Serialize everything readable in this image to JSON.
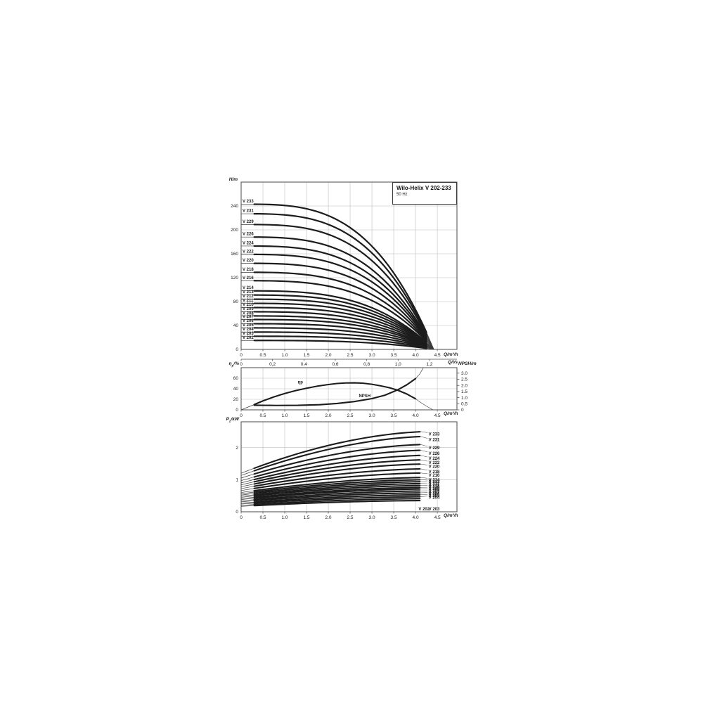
{
  "title_box": {
    "title": "Wilo-Helix V 202-233",
    "subtitle": "50 Hz"
  },
  "labels": {
    "head_y": "H/m",
    "q_m3h": "Q/m³/h",
    "q_ls": "Q/l/s",
    "eta_sym": "η",
    "eta_sub": "p",
    "eta_unit": "/%",
    "npsh_y": "NPSH/m",
    "p_sym": "P",
    "p_sub": "2",
    "p_unit": "/kW"
  },
  "chart_data": [
    {
      "id": "head",
      "type": "line",
      "title": "Wilo-Helix V 202-233",
      "subtitle": "50 Hz",
      "ylabel": "H/m",
      "xlabel": "Q/m³/h",
      "xlabel2": "Q/l/s",
      "xlim": [
        0,
        4.95
      ],
      "ylim": [
        0,
        280
      ],
      "grid": true,
      "y_ticks": [
        0,
        40,
        80,
        120,
        160,
        200,
        240
      ],
      "x_tick_values": [
        0,
        0.5,
        1,
        1.5,
        2,
        2.5,
        3,
        3.5,
        4,
        4.5
      ],
      "x_tick_labels": [
        "0",
        "0.5",
        "1.0",
        "1.5",
        "2.0",
        "2.5",
        "3.0",
        "3.5",
        "4.0",
        "4.5"
      ],
      "x2_tick_values_ls": [
        0,
        0.2,
        0.4,
        0.6,
        0.8,
        1.0,
        1.2
      ],
      "x2_tick_labels": [
        "0",
        "0,2",
        "0,4",
        "0,6",
        "0,8",
        "1,0",
        "1,2"
      ],
      "curve_model": {
        "formula": "H(Q)=H0*(1-(Q/4.42)^3.2)",
        "q_end": 4.42,
        "exponent": 3.2,
        "thick_range": [
          0.3,
          4.25
        ]
      },
      "series": [
        {
          "name": "V 233",
          "h0_m": 243
        },
        {
          "name": "V 231",
          "h0_m": 227
        },
        {
          "name": "V 229",
          "h0_m": 209
        },
        {
          "name": "V 226",
          "h0_m": 188
        },
        {
          "name": "V 224",
          "h0_m": 173
        },
        {
          "name": "V 222",
          "h0_m": 159
        },
        {
          "name": "V 220",
          "h0_m": 144
        },
        {
          "name": "V 218",
          "h0_m": 129
        },
        {
          "name": "V 216",
          "h0_m": 115
        },
        {
          "name": "V 214",
          "h0_m": 98
        },
        {
          "name": "V 213",
          "h0_m": 91
        },
        {
          "name": "V 212",
          "h0_m": 84
        },
        {
          "name": "V 211",
          "h0_m": 77
        },
        {
          "name": "V 210",
          "h0_m": 70
        },
        {
          "name": "V 209",
          "h0_m": 63
        },
        {
          "name": "V 208",
          "h0_m": 56
        },
        {
          "name": "V 207",
          "h0_m": 50
        },
        {
          "name": "V 206",
          "h0_m": 43
        },
        {
          "name": "V 205",
          "h0_m": 36
        },
        {
          "name": "V 204",
          "h0_m": 29
        },
        {
          "name": "V 203",
          "h0_m": 22
        },
        {
          "name": "V 202",
          "h0_m": 15
        }
      ]
    },
    {
      "id": "efficiency_npsh",
      "type": "line",
      "ylabel_left": "ηp/%",
      "ylabel_right": "NPSH/m",
      "xlabel": "Q/m³/h",
      "xlim": [
        0,
        4.95
      ],
      "ylim_left": [
        0,
        80
      ],
      "ylim_right": [
        0,
        3.45
      ],
      "y_ticks_left": [
        0,
        20,
        40,
        60
      ],
      "y_tick_values_right": [
        0,
        0.5,
        1,
        1.5,
        2,
        2.5,
        3
      ],
      "y_tick_labels_right": [
        "0",
        "0.5",
        "1.0",
        "1.5",
        "2.0",
        "2.5",
        "3.0"
      ],
      "x_tick_values": [
        0,
        0.5,
        1,
        1.5,
        2,
        2.5,
        3,
        3.5,
        4,
        4.5
      ],
      "x_tick_labels": [
        "0",
        "0.5",
        "1.0",
        "1.5",
        "2.0",
        "2.5",
        "3.0",
        "3.5",
        "4.0",
        "4.5"
      ],
      "series": [
        {
          "name": "ηp",
          "axis": "left",
          "label_pos_left_units": [
            1.3,
            50
          ],
          "thick_range": [
            0.3,
            4.0
          ],
          "points": [
            [
              0,
              0
            ],
            [
              0.15,
              5
            ],
            [
              0.3,
              10
            ],
            [
              0.5,
              17
            ],
            [
              0.75,
              24.5
            ],
            [
              1,
              31
            ],
            [
              1.25,
              36.5
            ],
            [
              1.5,
              41
            ],
            [
              1.75,
              45
            ],
            [
              2,
              48
            ],
            [
              2.2,
              50
            ],
            [
              2.4,
              51
            ],
            [
              2.6,
              51.3
            ],
            [
              2.8,
              50.5
            ],
            [
              3,
              48.5
            ],
            [
              3.2,
              45.5
            ],
            [
              3.4,
              42
            ],
            [
              3.6,
              37
            ],
            [
              3.8,
              30
            ],
            [
              4,
              21
            ],
            [
              4.1,
              15
            ],
            [
              4.25,
              7
            ],
            [
              4.4,
              0
            ]
          ]
        },
        {
          "name": "NPSH",
          "axis": "right",
          "label_pos_left_units": [
            2.7,
            24
          ],
          "thick_range": [
            0.3,
            4.0
          ],
          "points": [
            [
              0.3,
              0.38
            ],
            [
              0.8,
              0.36
            ],
            [
              1.3,
              0.37
            ],
            [
              1.8,
              0.42
            ],
            [
              2.2,
              0.52
            ],
            [
              2.6,
              0.68
            ],
            [
              3,
              0.92
            ],
            [
              3.3,
              1.2
            ],
            [
              3.6,
              1.65
            ],
            [
              3.8,
              2.05
            ],
            [
              4,
              2.55
            ],
            [
              4.1,
              2.95
            ],
            [
              4.18,
              3.45
            ]
          ]
        }
      ]
    },
    {
      "id": "power",
      "type": "line",
      "ylabel": "P2/kW",
      "xlabel": "Q/m³/h",
      "xlim": [
        0,
        4.95
      ],
      "ylim": [
        0,
        2.8
      ],
      "y_ticks": [
        0,
        1,
        2
      ],
      "x_tick_values": [
        0,
        0.5,
        1,
        1.5,
        2,
        2.5,
        3,
        3.5,
        4,
        4.5
      ],
      "x_tick_labels": [
        "0",
        "0.5",
        "1.0",
        "1.5",
        "2.0",
        "2.5",
        "3.0",
        "3.5",
        "4.0",
        "4.5"
      ],
      "curve_model": {
        "formula": "P(Q)=P0+(P1-P0)*(1-(1-Q/4.4)^1.8)",
        "thick_range": [
          0.3,
          4.1
        ],
        "label_x_q": 4.3
      },
      "series": [
        {
          "name": "V 233",
          "p0_kw": 1.2,
          "p1_kw": 2.5,
          "label_kw": 2.42
        },
        {
          "name": "V 231",
          "p0_kw": 1.13,
          "p1_kw": 2.35,
          "label_kw": 2.24
        },
        {
          "name": "V 229",
          "p0_kw": 1.05,
          "p1_kw": 2.1,
          "label_kw": 1.99
        },
        {
          "name": "V 226",
          "p0_kw": 0.97,
          "p1_kw": 1.92,
          "label_kw": 1.82
        },
        {
          "name": "V 224",
          "p0_kw": 0.9,
          "p1_kw": 1.76,
          "label_kw": 1.66
        },
        {
          "name": "V 222",
          "p0_kw": 0.84,
          "p1_kw": 1.62,
          "label_kw": 1.53
        },
        {
          "name": "V 220",
          "p0_kw": 0.78,
          "p1_kw": 1.49,
          "label_kw": 1.41
        },
        {
          "name": "V 218",
          "p0_kw": 0.72,
          "p1_kw": 1.34,
          "label_kw": 1.25
        },
        {
          "name": "V 216",
          "p0_kw": 0.66,
          "p1_kw": 1.21,
          "label_kw": 1.14
        },
        {
          "name": "V 214",
          "p0_kw": 0.6,
          "p1_kw": 1.07,
          "label_kw": 1.0
        },
        {
          "name": "V 213",
          "p0_kw": 0.56,
          "p1_kw": 1.0,
          "label_kw": 0.94
        },
        {
          "name": "V 212",
          "p0_kw": 0.52,
          "p1_kw": 0.94,
          "label_kw": 0.885
        },
        {
          "name": "V 211",
          "p0_kw": 0.48,
          "p1_kw": 0.88,
          "label_kw": 0.83
        },
        {
          "name": "V 210",
          "p0_kw": 0.45,
          "p1_kw": 0.82,
          "label_kw": 0.775
        },
        {
          "name": "V 209",
          "p0_kw": 0.41,
          "p1_kw": 0.76,
          "label_kw": 0.72
        },
        {
          "name": "V 208",
          "p0_kw": 0.38,
          "p1_kw": 0.71,
          "label_kw": 0.665
        },
        {
          "name": "V 207",
          "p0_kw": 0.34,
          "p1_kw": 0.65,
          "label_kw": 0.61
        },
        {
          "name": "V 206",
          "p0_kw": 0.31,
          "p1_kw": 0.59,
          "label_kw": 0.555
        },
        {
          "name": "V 205",
          "p0_kw": 0.27,
          "p1_kw": 0.53,
          "label_kw": 0.5
        },
        {
          "name": "V 204",
          "p0_kw": 0.24,
          "p1_kw": 0.47,
          "label_kw": 0.445
        },
        {
          "name": "V 203",
          "p0_kw": 0.2,
          "p1_kw": 0.41,
          "label_kw": 0.09,
          "label_q": 4.3,
          "leader": false
        },
        {
          "name": "V 202",
          "p0_kw": 0.17,
          "p1_kw": 0.35,
          "label_kw": 0.09,
          "label_q": 4.07,
          "leader": false
        }
      ]
    }
  ]
}
